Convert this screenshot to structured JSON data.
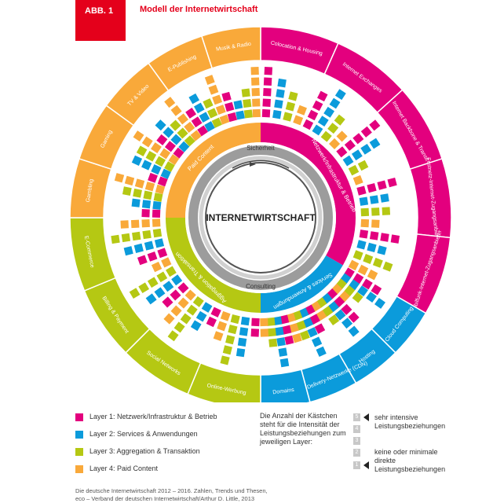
{
  "header": {
    "badge": "ABB. 1",
    "title": "Modell der Internetwirtschaft"
  },
  "center": {
    "label": "INTERNETWIRTSCHAFT",
    "top_arc": "Sicherheit",
    "bottom_arc": "Consulting"
  },
  "colors": {
    "layer1": "#e3007e",
    "layer2": "#0b9bdb",
    "layer3": "#b5c813",
    "layer4": "#f9a93a"
  },
  "layers": [
    {
      "id": "layer1",
      "label": "Netzwerk/Infrastruktur & Betrieb",
      "legend": "Layer 1: Netzwerk/Infrastruktur & Betrieb",
      "segments": [
        "Colocation & Housing",
        "Internet Exchanges",
        "Internet Backbone & Transit",
        "Festnetz-Internet-Zugangsanbieter",
        "Mobilfunk-Internet-Zugangsanbieter"
      ]
    },
    {
      "id": "layer2",
      "label": "Services & Anwendungen",
      "legend": "Layer 2: Services & Anwendungen",
      "segments": [
        "Cloud Computing",
        "Hosting",
        "Content-Delivery-Netzwerke (CDN)",
        "Domains"
      ]
    },
    {
      "id": "layer3",
      "label": "Aggregation & Transaktion",
      "legend": "Layer 3: Aggregation & Transaktion",
      "segments": [
        "Online-Werbung",
        "Social Networks",
        "Billing & Payment",
        "E-Commerce"
      ]
    },
    {
      "id": "layer4",
      "label": "Paid Content",
      "legend": "Layer 4: Paid Content",
      "segments": [
        "Gambling",
        "Gaming",
        "TV & Video",
        "E-Publishing",
        "Musik & Radio"
      ]
    }
  ],
  "explanation": "Die Anzahl der Kästchen steht für die Intensität der Leistungsbeziehungen zum jeweiligen Layer:",
  "scale": {
    "values": [
      "5",
      "4",
      "3",
      "2",
      "1"
    ],
    "high_label": "sehr intensive Leistungsbeziehungen",
    "low_label": "keine oder minimale direkte Leistungsbeziehungen"
  },
  "source": {
    "line1": "Die deutsche Internetwirtschaft 2012 – 2016. Zahlen, Trends und Thesen,",
    "line2": "eco – Verband der deutschen Internetwirtschaft/Arthur D. Little, 2013"
  },
  "intensity": [
    [
      5,
      4,
      3,
      2
    ],
    [
      4,
      5,
      3,
      2
    ],
    [
      5,
      4,
      2,
      1
    ],
    [
      4,
      3,
      3,
      2
    ],
    [
      4,
      3,
      4,
      3
    ],
    [
      4,
      5,
      3,
      2
    ],
    [
      4,
      5,
      3,
      2
    ],
    [
      3,
      5,
      3,
      3
    ],
    [
      3,
      5,
      3,
      2
    ],
    [
      2,
      4,
      5,
      3
    ],
    [
      2,
      3,
      5,
      4
    ],
    [
      3,
      4,
      5,
      2
    ],
    [
      3,
      4,
      5,
      4
    ],
    [
      2,
      3,
      4,
      5
    ],
    [
      2,
      4,
      4,
      5
    ],
    [
      3,
      4,
      3,
      5
    ],
    [
      3,
      4,
      3,
      5
    ],
    [
      3,
      2,
      3,
      5
    ]
  ]
}
